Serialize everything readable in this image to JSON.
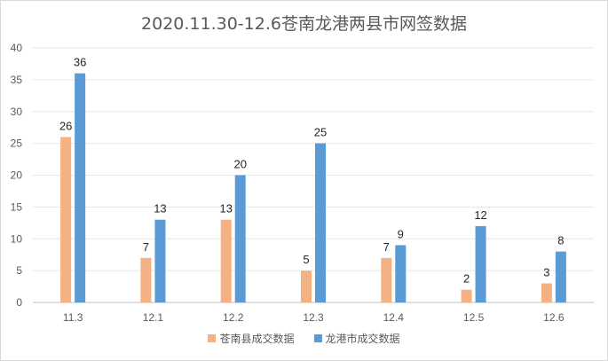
{
  "chart_data": {
    "type": "bar",
    "title": "2020.11.30-12.6苍南龙港两县市网签数据",
    "categories": [
      "11.3",
      "12.1",
      "12.2",
      "12.3",
      "12.4",
      "12.5",
      "12.6"
    ],
    "series": [
      {
        "name": "苍南县成交数据",
        "values": [
          26,
          7,
          13,
          5,
          7,
          2,
          3
        ],
        "color": "#F4B183"
      },
      {
        "name": "龙港市成交数据",
        "values": [
          36,
          13,
          20,
          25,
          9,
          12,
          8
        ],
        "color": "#5B9BD5"
      }
    ],
    "yticks": [
      "0",
      "5",
      "10",
      "15",
      "20",
      "25",
      "30",
      "35",
      "40"
    ],
    "ylim": [
      0,
      40
    ],
    "grid": true,
    "legend_position": "bottom"
  }
}
